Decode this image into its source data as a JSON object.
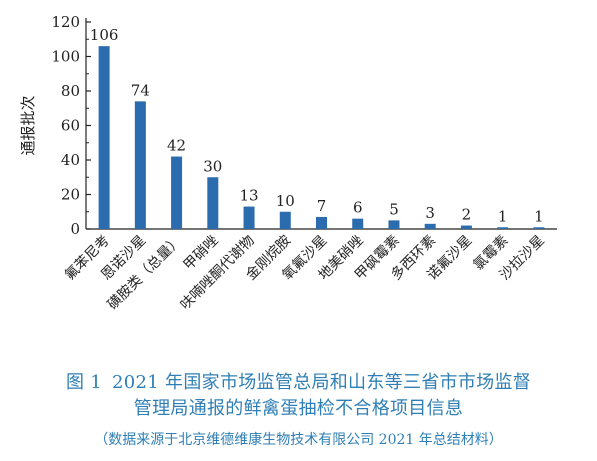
{
  "caption": {
    "figure_label": "图 1",
    "title_line1": "2021 年国家市场监管总局和山东等三省市市场监督",
    "title_line2": "管理局通报的鲜禽蛋抽检不合格项目信息",
    "source": "（数据来源于北京维德维康生物技术有限公司 2021 年总结材料）"
  },
  "colors": {
    "bar": "#2a6cae",
    "axis": "#222222",
    "caption": "#2f7fb6"
  },
  "chart_data": {
    "type": "bar",
    "title": "",
    "xlabel": "",
    "ylabel": "通报批次",
    "ylim": [
      0,
      120
    ],
    "yticks": [
      0,
      20,
      40,
      60,
      80,
      100,
      120
    ],
    "grid": false,
    "categories": [
      "氟苯尼考",
      "恩诺沙星",
      "磺胺类（总量）",
      "甲硝唑",
      "呋喃唑酮代谢物",
      "金刚烷胺",
      "氧氟沙星",
      "地美硝唑",
      "甲砜霉素",
      "多西环素",
      "诺氟沙星",
      "氯霉素",
      "沙拉沙星"
    ],
    "values": [
      106,
      74,
      42,
      30,
      13,
      10,
      7,
      6,
      5,
      3,
      2,
      1,
      1
    ]
  }
}
